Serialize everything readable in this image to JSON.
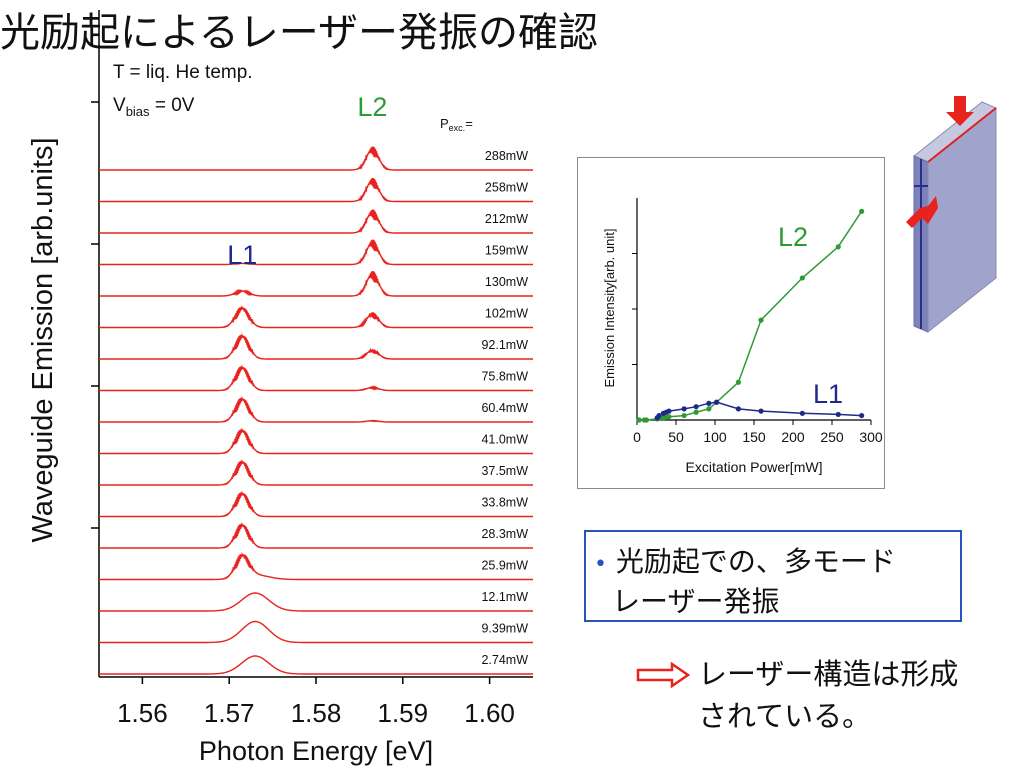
{
  "slide": {
    "title": "光励起によるレーザー発振の確認"
  },
  "colors": {
    "trace": "#e8221d",
    "l1": "#1e2a8a",
    "l2": "#2e9a35",
    "bullet_border": "#2a52be",
    "arrow": "#e8221d"
  },
  "chart_data": [
    {
      "type": "line",
      "title": "",
      "xlabel": "Photon Energy [eV]",
      "ylabel": "Waveguide Emission [arb.units]",
      "xlim": [
        1.555,
        1.605
      ],
      "x_ticks": [
        "1.56",
        "1.57",
        "1.58",
        "1.59",
        "1.60"
      ],
      "x_tick_values": [
        1.56,
        1.57,
        1.58,
        1.59,
        1.6
      ],
      "conditions": {
        "temperature": "T = liq. He temp.",
        "bias_main": "V",
        "bias_sub": "bias",
        "bias_value": " = 0V"
      },
      "legend_header": {
        "main": "P",
        "sub": "exc.",
        "eq": "="
      },
      "peak_labels": [
        {
          "text": "L1",
          "center_eV": 1.5715,
          "color": "#1e2a8a"
        },
        {
          "text": "L2",
          "center_eV": 1.5865,
          "color": "#2e9a35"
        }
      ],
      "series": [
        {
          "label": "288mW",
          "l1": 0.0,
          "l2": 0.85,
          "broad": 0.0
        },
        {
          "label": "258mW",
          "l1": 0.0,
          "l2": 0.85,
          "broad": 0.0
        },
        {
          "label": "212mW",
          "l1": 0.0,
          "l2": 0.85,
          "broad": 0.0
        },
        {
          "label": "159mW",
          "l1": 0.05,
          "l2": 0.9,
          "broad": 0.0
        },
        {
          "label": "130mW",
          "l1": 0.22,
          "l2": 0.9,
          "broad": 0.0
        },
        {
          "label": "102mW",
          "l1": 0.85,
          "l2": 0.55,
          "broad": 0.0
        },
        {
          "label": "92.1mW",
          "l1": 1.0,
          "l2": 0.35,
          "broad": 0.0
        },
        {
          "label": "75.8mW",
          "l1": 1.0,
          "l2": 0.12,
          "broad": 0.0
        },
        {
          "label": "60.4mW",
          "l1": 1.0,
          "l2": 0.05,
          "broad": 0.0
        },
        {
          "label": "41.0mW",
          "l1": 1.0,
          "l2": 0.0,
          "broad": 0.0
        },
        {
          "label": "37.5mW",
          "l1": 1.0,
          "l2": 0.0,
          "broad": 0.0
        },
        {
          "label": "33.8mW",
          "l1": 1.0,
          "l2": 0.0,
          "broad": 0.0
        },
        {
          "label": "28.3mW",
          "l1": 1.0,
          "l2": 0.0,
          "broad": 0.0
        },
        {
          "label": "25.9mW",
          "l1": 0.95,
          "l2": 0.0,
          "broad": 0.15
        },
        {
          "label": "12.1mW",
          "l1": 0.0,
          "l2": 0.0,
          "broad": 0.6
        },
        {
          "label": "9.39mW",
          "l1": 0.0,
          "l2": 0.0,
          "broad": 0.7
        },
        {
          "label": "2.74mW",
          "l1": 0.0,
          "l2": 0.0,
          "broad": 0.6
        }
      ]
    },
    {
      "type": "line",
      "title": "",
      "xlabel": "Excitation Power[mW]",
      "ylabel": "Emission Intensity[arb. unit]",
      "xlim": [
        0,
        300
      ],
      "ylim": [
        0,
        1.0
      ],
      "x_ticks": [
        "0",
        "50",
        "100",
        "150",
        "200",
        "250",
        "300"
      ],
      "series": [
        {
          "name": "L2",
          "color": "#2e9a35",
          "points": [
            [
              2.7,
              0.0
            ],
            [
              9.4,
              0.0
            ],
            [
              12.1,
              0.0
            ],
            [
              25.9,
              0.005
            ],
            [
              28.3,
              0.007
            ],
            [
              33.8,
              0.01
            ],
            [
              37.5,
              0.012
            ],
            [
              41,
              0.015
            ],
            [
              60.4,
              0.02
            ],
            [
              75.8,
              0.035
            ],
            [
              92.1,
              0.05
            ],
            [
              102,
              0.08
            ],
            [
              130,
              0.17
            ],
            [
              159,
              0.45
            ],
            [
              212,
              0.64
            ],
            [
              258,
              0.78
            ],
            [
              288,
              0.94
            ]
          ]
        },
        {
          "name": "L1",
          "color": "#1e2a8a",
          "points": [
            [
              25.9,
              0.01
            ],
            [
              28.3,
              0.02
            ],
            [
              33.8,
              0.03
            ],
            [
              37.5,
              0.035
            ],
            [
              41,
              0.04
            ],
            [
              60.4,
              0.05
            ],
            [
              75.8,
              0.06
            ],
            [
              92.1,
              0.075
            ],
            [
              102,
              0.08
            ],
            [
              130,
              0.05
            ],
            [
              159,
              0.04
            ],
            [
              212,
              0.03
            ],
            [
              258,
              0.025
            ],
            [
              288,
              0.02
            ]
          ]
        }
      ]
    }
  ],
  "bullet": {
    "dot": "•",
    "line1": "光励起での、多モード",
    "line2": "レーザー発振"
  },
  "conclusion": {
    "line1": "レーザー構造は形成",
    "line2": "されている。"
  }
}
